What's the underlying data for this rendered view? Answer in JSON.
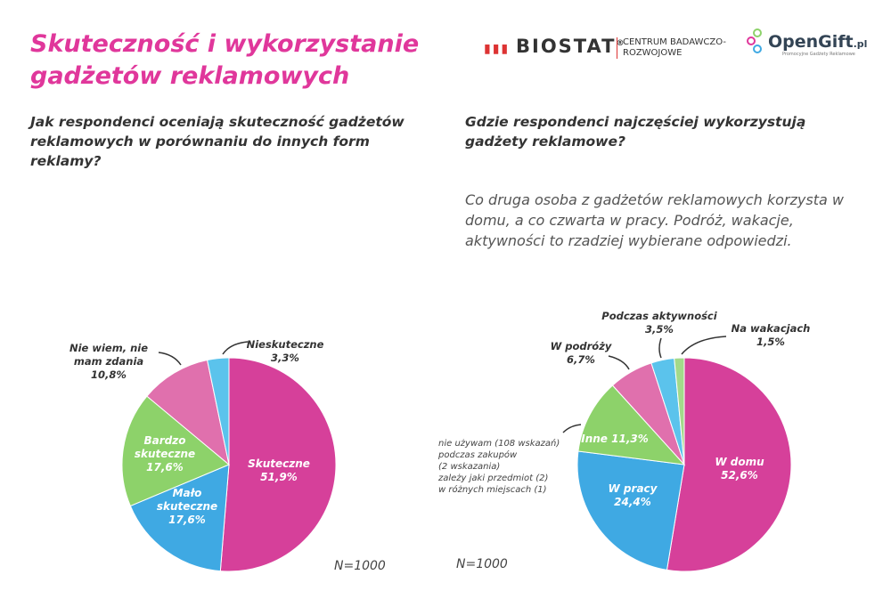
{
  "title": "Skuteczność i wykorzystanie gadżetów reklamowych",
  "logos": {
    "biostat": "BIOSTAT",
    "centrum": "CENTRUM BADAWCZO-ROZWOJOWE",
    "opengift": "OpenGift",
    "opengift_tld": ".pl",
    "opengift_sub": "Promocyjne Gadżety Reklamowe"
  },
  "left": {
    "question": "Jak respondenci oceniają skuteczność gadżetów reklamowych w porównaniu do innych form reklamy?",
    "n": "N=1000"
  },
  "right": {
    "question": "Gdzie respondenci najczęściej wykorzystują gadżety reklamowe?",
    "description": "Co druga osoba z gadżetów reklamowych korzysta w domu, a co czwarta w pracy. Podróż, wakacje, aktywności to rzadziej wybierane odpowiedzi.",
    "note": [
      "nie używam (108 wskazań)",
      "podczas zakupów",
      "(2 wskazania)",
      "zależy jaki przedmiot (2)",
      "w różnych miejscach (1)"
    ],
    "n": "N=1000"
  },
  "chart_data": [
    {
      "type": "pie",
      "categories": [
        "Skuteczne",
        "Mało skuteczne",
        "Bardzo skuteczne",
        "Nie wiem, nie mam zdania",
        "Nieskuteczne"
      ],
      "values": [
        51.9,
        17.6,
        17.6,
        10.8,
        3.3
      ],
      "labels": [
        "51,9%",
        "17,6%",
        "17,6%",
        "10,8%",
        "3,3%"
      ],
      "colors": [
        "#d6409a",
        "#3fa9e3",
        "#8dd26a",
        "#e070ad",
        "#5bc3ec"
      ]
    },
    {
      "type": "pie",
      "categories": [
        "W domu",
        "W pracy",
        "Inne",
        "W podróży",
        "Podczas aktywności",
        "Na wakacjach"
      ],
      "values": [
        52.6,
        24.4,
        11.3,
        6.7,
        3.5,
        1.5
      ],
      "labels": [
        "52,6%",
        "24,4%",
        "11,3%",
        "6,7%",
        "3,5%",
        "1,5%"
      ],
      "colors": [
        "#d6409a",
        "#3fa9e3",
        "#8dd26a",
        "#e070ad",
        "#5bc3ec",
        "#a3d98a"
      ]
    }
  ]
}
